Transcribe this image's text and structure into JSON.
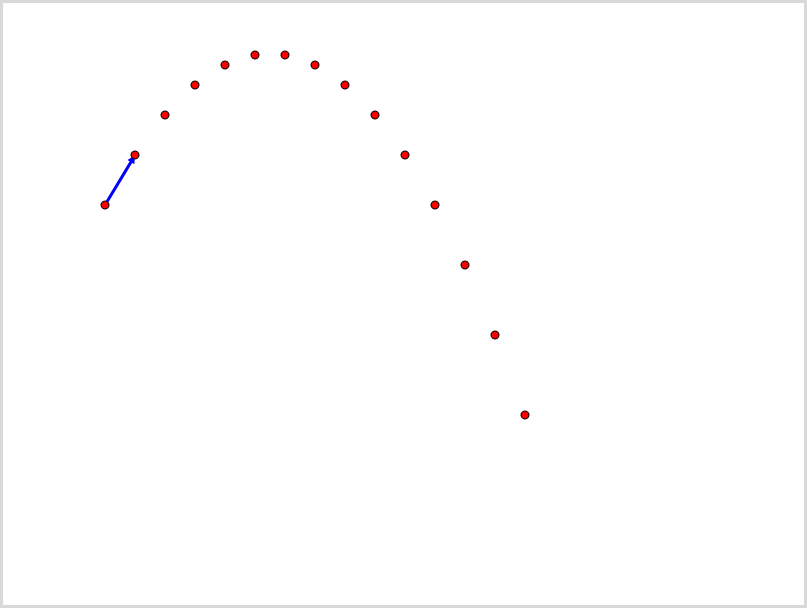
{
  "colors": {
    "background": "#ffffff",
    "frame_border": "#d9d9d9",
    "point_fill": "#ff0000",
    "point_stroke": "#000000",
    "velocity_arrow": "#0000ff"
  },
  "trajectory": {
    "description_kind": "projectile-path",
    "time_step_count": 15,
    "launch_point_index": 0,
    "velocity_arrow": {
      "from_point_index": 0,
      "to_point_index": 1
    }
  }
}
